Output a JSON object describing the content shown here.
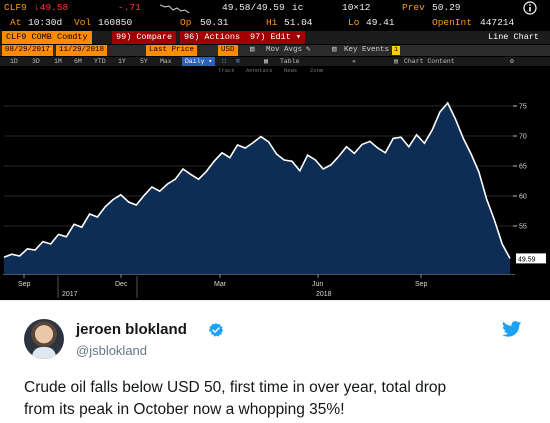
{
  "terminal": {
    "row1": {
      "ticker": "CLF9",
      "last": "↓49.58",
      "change": "-.71",
      "bid_ask": "49.58/49.59",
      "bid_ask_suffix": "ic",
      "size": "10×12",
      "prev_label": "Prev",
      "prev_value": "50.29"
    },
    "row2": {
      "at_label": "At",
      "time": "10:30d",
      "vol_label": "Vol",
      "vol_value": "160850",
      "op_label": "Op",
      "op_value": "50.31",
      "hi_label": "Hi",
      "hi_value": "51.04",
      "lo_label": "Lo",
      "lo_value": "49.41",
      "openint_label": "OpenInt",
      "openint_value": "447214"
    },
    "toolbar": {
      "security": "CLF9 COMB Comdty",
      "compare": "99) Compare",
      "actions": "96) Actions ▾",
      "edit": "97) Edit ▾",
      "view": "Line Chart"
    },
    "range_bar": {
      "start_date": "08/29/2017",
      "end_date": "11/29/2018",
      "field": "Last Price",
      "currency": "USD",
      "mov_avgs": "Mov Avgs",
      "key_events": "Key Events",
      "chart_content": "Chart Content"
    },
    "periods": [
      "1D",
      "3D",
      "1M",
      "6M",
      "YTD",
      "1Y",
      "5Y",
      "Max"
    ],
    "frequency": "Daily",
    "period_extras": [
      "Table"
    ],
    "tools": [
      "Track",
      "Annotate",
      "News",
      "Zoom"
    ]
  },
  "chart_data": {
    "type": "line",
    "title": "",
    "xlabel": "",
    "ylabel": "",
    "x_tick_labels": [
      "Sep",
      "Dec",
      "Mar",
      "Jun",
      "Sep"
    ],
    "year_labels": [
      "2017",
      "2018"
    ],
    "y_tick_labels": [
      "55",
      "60",
      "65",
      "70",
      "75"
    ],
    "ylim": [
      47,
      80
    ],
    "last_label": "49.59",
    "series": [
      {
        "values": [
          49.8,
          50.3,
          50.0,
          51.2,
          51.0,
          52.4,
          52.0,
          53.6,
          53.2,
          55.3,
          54.8,
          57.0,
          56.5,
          58.2,
          59.4,
          60.2,
          59.0,
          58.5,
          60.1,
          61.5,
          60.8,
          62.0,
          62.8,
          64.5,
          63.6,
          62.8,
          64.1,
          65.8,
          67.2,
          66.4,
          68.5,
          68.0,
          68.9,
          69.9,
          69.0,
          67.0,
          66.0,
          65.8,
          64.2,
          66.8,
          66.0,
          64.5,
          65.2,
          66.6,
          68.2,
          67.1,
          68.6,
          69.1,
          68.0,
          67.2,
          69.6,
          69.8,
          68.2,
          70.2,
          68.8,
          71.0,
          74.0,
          75.5,
          72.8,
          69.6,
          67.0,
          64.0,
          59.5,
          56.0,
          52.0,
          49.6
        ]
      }
    ]
  },
  "tweet": {
    "display_name": "jeroen blokland",
    "handle": "@jsblokland",
    "text_line1": "Crude oil falls below USD 50, first time in over year, total drop",
    "text_line2": "from its peak in October now a whopping 35%!",
    "colors": {
      "verified": "#1da1f2",
      "bird": "#1da1f2",
      "fill": "#0e2d55",
      "line": "#ffffff"
    }
  }
}
